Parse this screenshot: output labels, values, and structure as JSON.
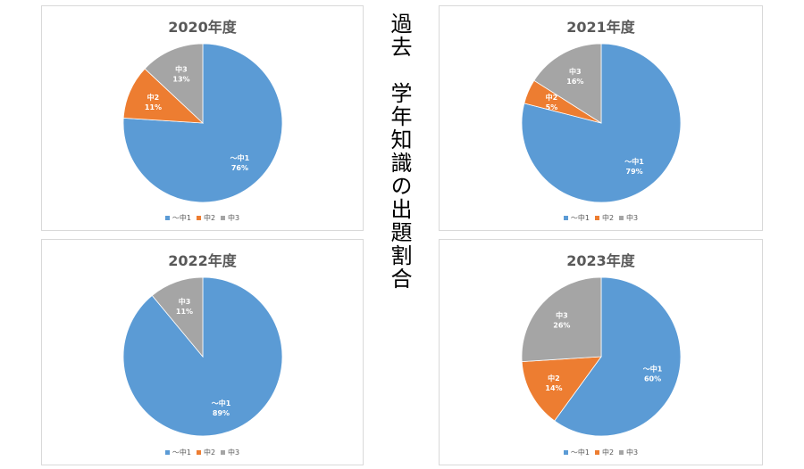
{
  "side_title": "過去　学年知識の出題割合",
  "colors": {
    "中1": "#5b9bd5",
    "中2": "#ed7d31",
    "中3": "#a5a5a5"
  },
  "legend_labels": [
    "～中1",
    "中2",
    "中3"
  ],
  "chart_data": [
    {
      "type": "pie",
      "title": "2020年度",
      "slices": [
        {
          "label": "～中1",
          "value": 76,
          "text": "76%"
        },
        {
          "label": "中2",
          "value": 11,
          "text": "11%"
        },
        {
          "label": "中3",
          "value": 13,
          "text": "13%"
        }
      ]
    },
    {
      "type": "pie",
      "title": "2021年度",
      "slices": [
        {
          "label": "～中1",
          "value": 79,
          "text": "79%"
        },
        {
          "label": "中2",
          "value": 5,
          "text": "5%"
        },
        {
          "label": "中3",
          "value": 16,
          "text": "16%"
        }
      ]
    },
    {
      "type": "pie",
      "title": "2022年度",
      "slices": [
        {
          "label": "～中1",
          "value": 89,
          "text": "89%"
        },
        {
          "label": "中3",
          "value": 11,
          "text": "11%"
        }
      ]
    },
    {
      "type": "pie",
      "title": "2023年度",
      "slices": [
        {
          "label": "～中1",
          "value": 60,
          "text": "60%"
        },
        {
          "label": "中2",
          "value": 14,
          "text": "14%"
        },
        {
          "label": "中3",
          "value": 26,
          "text": "26%"
        }
      ]
    }
  ]
}
